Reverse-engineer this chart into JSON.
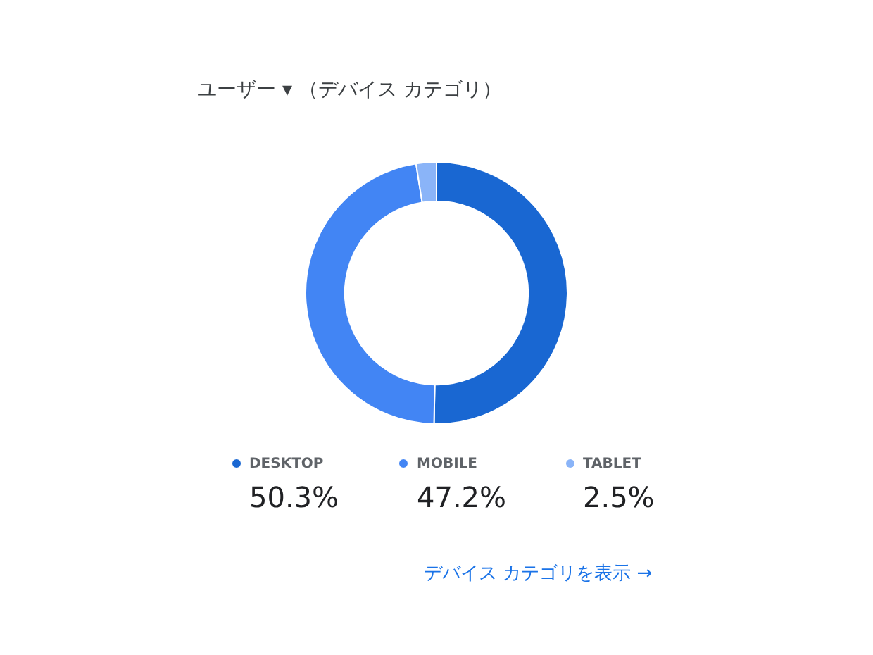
{
  "chart_data": {
    "type": "donut",
    "title": "ユーザー ▾ （デバイス カテゴリ）",
    "categories": [
      "DESKTOP",
      "MOBILE",
      "TABLET"
    ],
    "values": [
      50.3,
      47.2,
      2.5
    ],
    "colors": [
      "#1967d2",
      "#4285f4",
      "#8ab4f8"
    ],
    "value_labels": [
      "50.3%",
      "47.2%",
      "2.5%"
    ],
    "legend": "bottom",
    "annotations": [
      "デバイス カテゴリを表示 →"
    ]
  }
}
